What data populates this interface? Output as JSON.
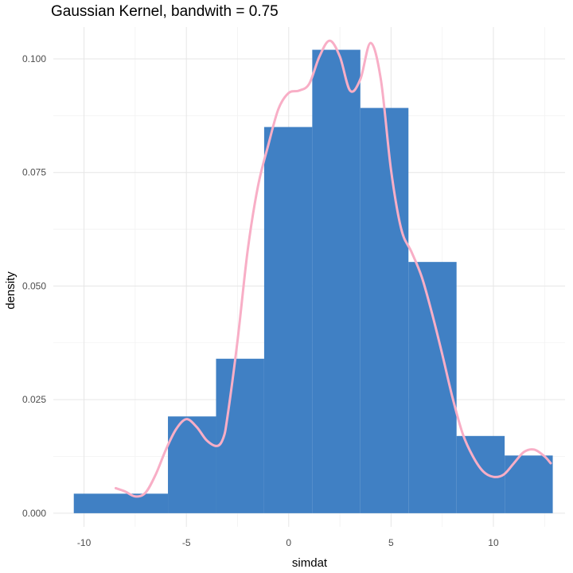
{
  "chart_data": {
    "type": "bar",
    "title": "Gaussian Kernel, bandwith = 0.75",
    "xlabel": "simdat",
    "ylabel": "density",
    "xlim": [
      -11.5,
      13.5
    ],
    "ylim": [
      -0.003,
      0.107
    ],
    "x_ticks": [
      -10,
      -5,
      0,
      5,
      10
    ],
    "x_tick_labels": [
      "-10",
      "-5",
      "0",
      "5",
      "10"
    ],
    "y_ticks": [
      0,
      0.025,
      0.05,
      0.075,
      0.1
    ],
    "y_tick_labels": [
      "0.000",
      "0.025",
      "0.050",
      "0.075",
      "0.100"
    ],
    "grid": true,
    "histogram": {
      "color": "#4080C4",
      "bins": [
        {
          "x0": -10.5,
          "x1": -5.9,
          "density": 0.0043
        },
        {
          "x0": -5.9,
          "x1": -3.55,
          "density": 0.0213
        },
        {
          "x0": -3.55,
          "x1": -1.2,
          "density": 0.034
        },
        {
          "x0": -1.2,
          "x1": 1.15,
          "density": 0.085
        },
        {
          "x0": 1.15,
          "x1": 3.5,
          "density": 0.102
        },
        {
          "x0": 3.5,
          "x1": 5.85,
          "density": 0.0892
        },
        {
          "x0": 5.85,
          "x1": 8.2,
          "density": 0.0553
        },
        {
          "x0": 8.2,
          "x1": 10.55,
          "density": 0.017
        },
        {
          "x0": 10.55,
          "x1": 12.9,
          "density": 0.0127
        }
      ]
    },
    "density_curve": {
      "color": "#F8AEC6",
      "x": [
        -8.45,
        -8.0,
        -7.5,
        -7.0,
        -6.5,
        -6.0,
        -5.5,
        -5.0,
        -4.5,
        -4.0,
        -3.5,
        -3.2,
        -3.0,
        -2.5,
        -2.0,
        -1.5,
        -1.0,
        -0.5,
        0.0,
        0.5,
        1.0,
        1.5,
        2.0,
        2.5,
        3.0,
        3.5,
        4.0,
        4.5,
        5.0,
        5.5,
        6.0,
        6.5,
        7.0,
        7.5,
        8.0,
        8.5,
        9.0,
        9.5,
        10.0,
        10.5,
        11.0,
        11.5,
        12.0,
        12.5,
        12.8
      ],
      "y": [
        0.0055,
        0.0048,
        0.0037,
        0.0045,
        0.0085,
        0.014,
        0.0185,
        0.0207,
        0.019,
        0.016,
        0.0148,
        0.0165,
        0.021,
        0.038,
        0.058,
        0.072,
        0.081,
        0.089,
        0.0925,
        0.093,
        0.0945,
        0.1005,
        0.104,
        0.1005,
        0.093,
        0.0955,
        0.1035,
        0.0955,
        0.0755,
        0.0625,
        0.0575,
        0.052,
        0.044,
        0.035,
        0.0255,
        0.0175,
        0.0125,
        0.0092,
        0.008,
        0.0085,
        0.011,
        0.0135,
        0.014,
        0.0125,
        0.011
      ]
    }
  }
}
